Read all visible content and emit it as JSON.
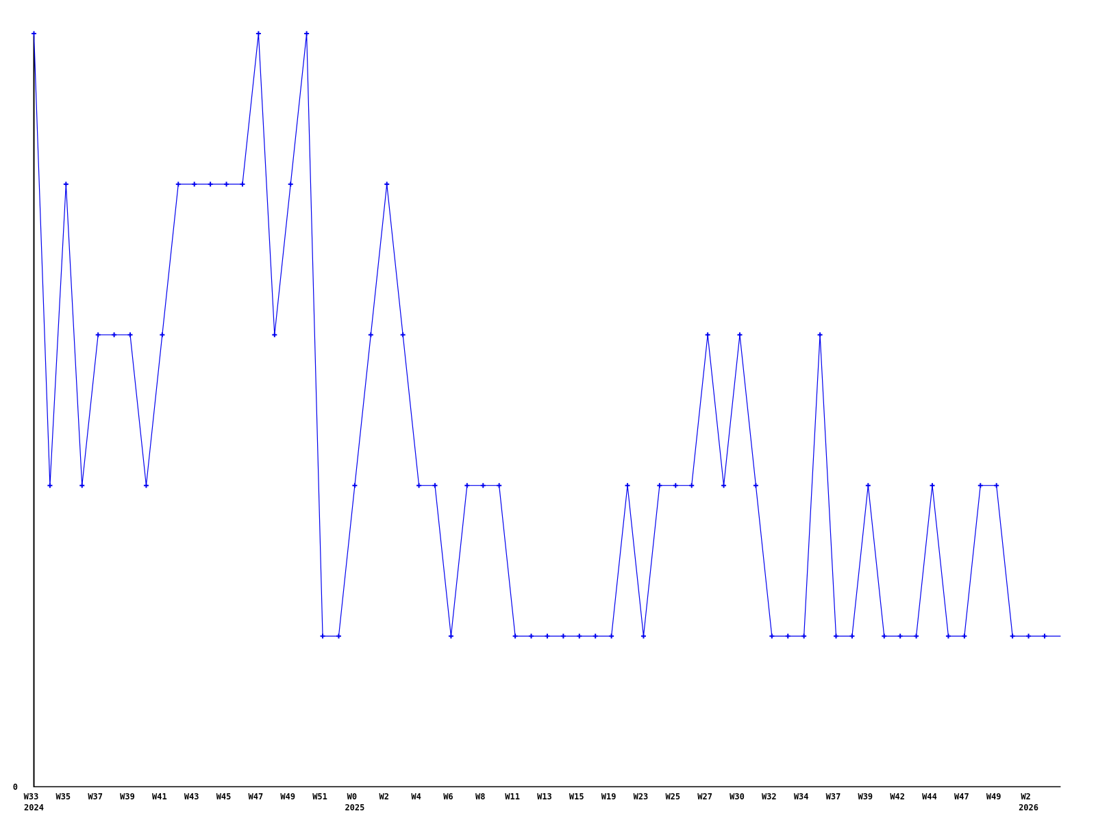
{
  "chart_data": {
    "type": "line",
    "title": "",
    "x_unit": "ISO week",
    "background_hex": "#ffffff",
    "axis_color_hex": "#000000",
    "line_color_hex": "#0000ee",
    "marker": "plus",
    "last_point_has_marker": false,
    "grid": false,
    "legend": false,
    "y_axis": {
      "zero_label": "0",
      "min": 0,
      "max_value_observed": 5
    },
    "x_tick_interval": 2,
    "values": [
      5,
      2,
      4,
      2,
      3,
      3,
      3,
      2,
      3,
      4,
      4,
      4,
      4,
      4,
      5,
      3,
      4,
      5,
      1,
      1,
      2,
      3,
      4,
      3,
      2,
      2,
      1,
      2,
      2,
      2,
      1,
      1,
      1,
      1,
      1,
      1,
      1,
      2,
      1,
      2,
      2,
      2,
      3,
      2,
      3,
      2,
      1,
      1,
      1,
      3,
      1,
      1,
      2,
      1,
      1,
      1,
      2,
      1,
      1,
      2,
      2,
      1,
      1,
      1,
      1
    ],
    "x_ticks": [
      {
        "index": 0,
        "week": "W33",
        "year": "2024"
      },
      {
        "index": 2,
        "week": "W35"
      },
      {
        "index": 4,
        "week": "W37"
      },
      {
        "index": 6,
        "week": "W39"
      },
      {
        "index": 8,
        "week": "W41"
      },
      {
        "index": 10,
        "week": "W43"
      },
      {
        "index": 12,
        "week": "W45"
      },
      {
        "index": 14,
        "week": "W47"
      },
      {
        "index": 16,
        "week": "W49"
      },
      {
        "index": 18,
        "week": "W51"
      },
      {
        "index": 20,
        "week": "W0",
        "year": "2025"
      },
      {
        "index": 22,
        "week": "W2"
      },
      {
        "index": 24,
        "week": "W4"
      },
      {
        "index": 26,
        "week": "W6"
      },
      {
        "index": 28,
        "week": "W8"
      },
      {
        "index": 30,
        "week": "W11"
      },
      {
        "index": 32,
        "week": "W13"
      },
      {
        "index": 34,
        "week": "W15"
      },
      {
        "index": 36,
        "week": "W19"
      },
      {
        "index": 38,
        "week": "W23"
      },
      {
        "index": 40,
        "week": "W25"
      },
      {
        "index": 42,
        "week": "W27"
      },
      {
        "index": 44,
        "week": "W30"
      },
      {
        "index": 46,
        "week": "W32"
      },
      {
        "index": 48,
        "week": "W34"
      },
      {
        "index": 50,
        "week": "W37"
      },
      {
        "index": 52,
        "week": "W39"
      },
      {
        "index": 54,
        "week": "W42"
      },
      {
        "index": 56,
        "week": "W44"
      },
      {
        "index": 58,
        "week": "W47"
      },
      {
        "index": 60,
        "week": "W49"
      },
      {
        "index": 62,
        "week": "W2",
        "year": "2026"
      }
    ]
  }
}
